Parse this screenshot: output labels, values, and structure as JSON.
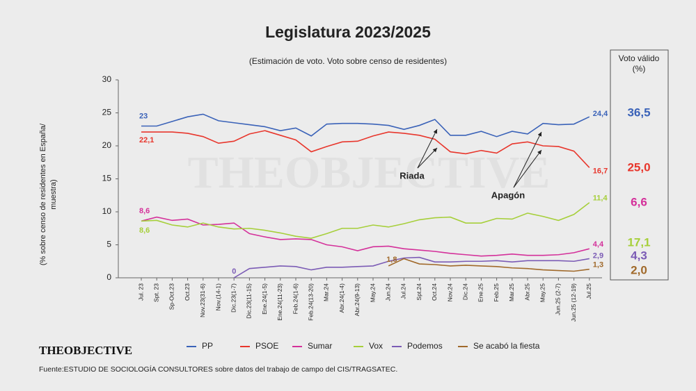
{
  "logo": "THEOBJECTIVE",
  "chart_data": {
    "type": "line",
    "title": "Legislatura 2023/2025",
    "subtitle": "(Estimación de voto. Voto sobre censo de residentes)",
    "ylabel": [
      "(% sobre censo de residentes en España/",
      "muestra)"
    ],
    "watermark": "THEOBJECTIVE",
    "source": "Fuente:ESTUDIO DE SOCIOLOGÍA CONSULTORES sobre datos del trabajo de campo del CIS/TRAGSATEC.",
    "side_title": "Voto válido",
    "side_unit": "(%)",
    "categories": [
      "Jul. 23",
      "Spt. 23",
      "Sp-Oct.23",
      "Oct.23",
      "Nov.23(31-6)",
      "Nov.(14-1)",
      "Dic.23(1-7)",
      "Dic.23(11-15)",
      "Ene.24(1-5)",
      "Ene.24(11-23)",
      "Feb.24(1-6)",
      "Feb.24(13-20)",
      "Mar.24",
      "Abr.24(1-4)",
      "Abr.24(9-13)",
      "May.24",
      "Jun.24",
      "Jul.24",
      "Spt.24",
      "Oct.24",
      "Nov.24",
      "Dic.24",
      "Ene.25",
      "Feb.25",
      "Mar.25",
      "Abr.25",
      "May.25",
      "Jun.25 (2-7)",
      "Jun.25 (12-19)",
      "Jul.25"
    ],
    "ylim": [
      0,
      30
    ],
    "yticks": [
      0,
      5,
      10,
      15,
      20,
      25,
      30
    ],
    "annotations": [
      {
        "text": "Riada",
        "category": 19
      },
      {
        "text": "Apagón",
        "category": 25
      }
    ],
    "series": [
      {
        "name": "PP",
        "color": "#3a62b8",
        "values": [
          23,
          23,
          23.7,
          24.4,
          24.8,
          23.8,
          23.5,
          23.2,
          22.9,
          22.3,
          22.7,
          21.5,
          23.3,
          23.4,
          23.4,
          23.3,
          23.1,
          22.5,
          23.1,
          24.0,
          21.6,
          21.6,
          22.2,
          21.4,
          22.2,
          21.8,
          23.4,
          23.2,
          23.3,
          24.4
        ],
        "value_labels": [
          "23",
          null,
          null,
          null,
          null,
          null,
          null,
          null,
          null,
          null,
          null,
          null,
          null,
          null,
          null,
          null,
          null,
          null,
          null,
          null,
          null,
          null,
          null,
          null,
          null,
          null,
          null,
          null,
          null,
          "24,4"
        ],
        "valid_vote": {
          "value": 36.5,
          "label": "36,5"
        }
      },
      {
        "name": "PSOE",
        "color": "#e8362c",
        "values": [
          22.1,
          22.1,
          22.1,
          21.9,
          21.4,
          20.4,
          20.7,
          21.8,
          22.3,
          21.6,
          20.9,
          19.1,
          19.9,
          20.6,
          20.7,
          21.5,
          22.1,
          21.9,
          21.6,
          21.0,
          19.1,
          18.8,
          19.3,
          18.9,
          20.3,
          20.6,
          20.0,
          19.9,
          19.2,
          16.7
        ],
        "value_labels": [
          "22,1",
          null,
          null,
          null,
          null,
          null,
          null,
          null,
          null,
          null,
          null,
          null,
          null,
          null,
          null,
          null,
          null,
          null,
          null,
          null,
          null,
          null,
          null,
          null,
          null,
          null,
          null,
          null,
          null,
          "16,7"
        ],
        "valid_vote": {
          "value": 25.0,
          "label": "25,0"
        }
      },
      {
        "name": "Sumar",
        "color": "#d4309a",
        "values": [
          8.6,
          9.2,
          8.7,
          8.9,
          8.0,
          8.1,
          8.3,
          6.7,
          6.2,
          5.8,
          5.9,
          5.8,
          5.0,
          4.7,
          4.1,
          4.7,
          4.8,
          4.4,
          4.2,
          4.0,
          3.7,
          3.5,
          3.3,
          3.4,
          3.6,
          3.4,
          3.4,
          3.5,
          3.8,
          4.4
        ],
        "value_labels": [
          "8,6",
          null,
          null,
          null,
          null,
          null,
          null,
          null,
          null,
          null,
          null,
          null,
          null,
          null,
          null,
          null,
          null,
          null,
          null,
          null,
          null,
          null,
          null,
          null,
          null,
          null,
          null,
          null,
          null,
          "4,4"
        ],
        "valid_vote": {
          "value": 6.6,
          "label": "6,6"
        }
      },
      {
        "name": "Vox",
        "color": "#a6cf3a",
        "values": [
          8.6,
          8.7,
          8.0,
          7.7,
          8.3,
          7.7,
          7.4,
          7.5,
          7.2,
          6.8,
          6.3,
          6.0,
          6.7,
          7.5,
          7.5,
          8.0,
          7.7,
          8.2,
          8.8,
          9.1,
          9.2,
          8.3,
          8.3,
          9.0,
          8.9,
          9.8,
          9.3,
          8.7,
          9.6,
          11.4
        ],
        "value_labels": [
          "8,6",
          null,
          null,
          null,
          null,
          null,
          null,
          null,
          null,
          null,
          null,
          null,
          null,
          null,
          null,
          null,
          null,
          null,
          null,
          null,
          null,
          null,
          null,
          null,
          null,
          null,
          null,
          null,
          null,
          "11,4"
        ],
        "valid_vote": {
          "value": 17.1,
          "label": "17,1"
        }
      },
      {
        "name": "Podemos",
        "color": "#7b5bb5",
        "values": [
          null,
          null,
          null,
          null,
          null,
          null,
          0,
          1.4,
          1.6,
          1.8,
          1.7,
          1.2,
          1.6,
          1.6,
          1.7,
          1.8,
          2.5,
          3.0,
          3.1,
          2.4,
          2.4,
          2.5,
          2.5,
          2.6,
          2.4,
          2.6,
          2.6,
          2.6,
          2.5,
          2.9
        ],
        "value_labels": [
          null,
          null,
          null,
          null,
          null,
          null,
          "0",
          null,
          null,
          null,
          null,
          null,
          null,
          null,
          null,
          null,
          null,
          null,
          null,
          null,
          null,
          null,
          null,
          null,
          null,
          null,
          null,
          null,
          null,
          "2,9"
        ],
        "valid_vote": {
          "value": 4.3,
          "label": "4,3"
        }
      },
      {
        "name": "Se acabó la fiesta",
        "color": "#a0692a",
        "values": [
          null,
          null,
          null,
          null,
          null,
          null,
          null,
          null,
          null,
          null,
          null,
          null,
          null,
          null,
          null,
          null,
          1.8,
          2.9,
          2.1,
          2.0,
          1.8,
          1.9,
          1.8,
          1.7,
          1.5,
          1.4,
          1.2,
          1.1,
          1.0,
          1.3
        ],
        "value_labels": [
          null,
          null,
          null,
          null,
          null,
          null,
          null,
          null,
          null,
          null,
          null,
          null,
          null,
          null,
          null,
          null,
          "1,8",
          null,
          null,
          null,
          null,
          null,
          null,
          null,
          null,
          null,
          null,
          null,
          null,
          "1,3"
        ],
        "valid_vote": {
          "value": 2.0,
          "label": "2,0"
        }
      }
    ]
  }
}
